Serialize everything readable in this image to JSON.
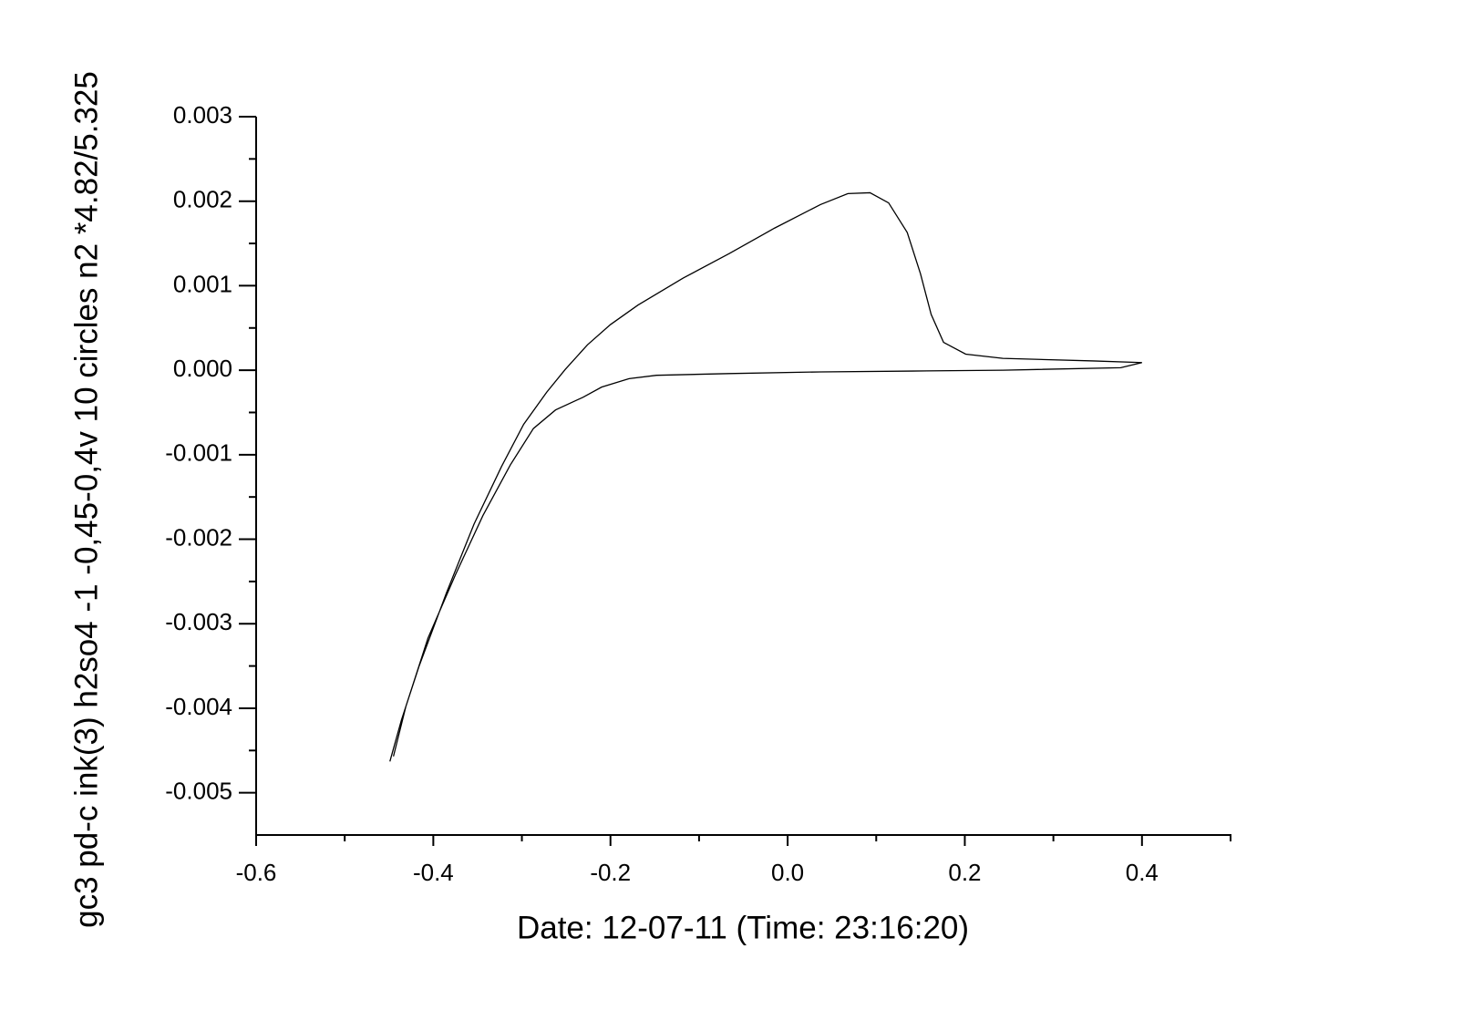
{
  "chart_data": {
    "type": "line",
    "xlabel": "Date: 12-07-11 (Time: 23:16:20)",
    "ylabel": "gc3 pd-c ink(3) h2so4 -1   -0,45-0,4v 10 circles n2 *4.82/5.325",
    "x": [
      -0.449,
      -0.436,
      -0.416,
      -0.385,
      -0.354,
      -0.323,
      -0.298,
      -0.272,
      -0.251,
      -0.226,
      -0.2,
      -0.169,
      -0.118,
      -0.066,
      -0.015,
      0.037,
      0.068,
      0.093,
      0.114,
      0.135,
      0.15,
      0.162,
      0.176,
      0.201,
      0.243,
      0.345,
      0.4,
      0.376,
      0.243,
      0.14,
      0.037,
      -0.066,
      -0.148,
      -0.179,
      -0.21,
      -0.231,
      -0.262,
      -0.287,
      -0.313,
      -0.344,
      -0.375,
      -0.406,
      -0.431,
      -0.445
    ],
    "series": [
      {
        "color": "#000000",
        "values": [
          -0.00463,
          -0.00414,
          -0.0035,
          -0.00263,
          -0.00182,
          -0.00114,
          -0.00064,
          -0.00026,
          1e-05,
          0.0003,
          0.00054,
          0.00077,
          0.00109,
          0.00138,
          0.00168,
          0.00196,
          0.00209,
          0.0021,
          0.00198,
          0.00163,
          0.00114,
          0.00066,
          0.00033,
          0.00019,
          0.00014,
          0.00011,
          9e-05,
          3e-05,
          0.0,
          -1e-05,
          -2e-05,
          -4e-05,
          -6e-05,
          -0.0001,
          -0.0002,
          -0.00032,
          -0.00047,
          -0.00069,
          -0.00112,
          -0.00172,
          -0.00242,
          -0.00317,
          -0.00398,
          -0.00457
        ]
      }
    ],
    "xlim": [
      -0.6,
      0.5
    ],
    "ylim": [
      -0.0055,
      0.003
    ],
    "xticks": [
      -0.6,
      -0.4,
      -0.2,
      {
        "value": 0,
        "label": "0.0"
      },
      0.2,
      0.4
    ],
    "xminorticks": [
      -0.5,
      -0.3,
      -0.1,
      0.1,
      0.3,
      0.5
    ],
    "yticks": [
      0.003,
      0.002,
      0.001,
      {
        "value": 0,
        "label": "0.000"
      },
      -0.001,
      -0.002,
      -0.003,
      -0.004,
      -0.005
    ],
    "yminorticks": [
      0.0025,
      0.0015,
      0.0005,
      -0.0005,
      -0.0015,
      -0.0025,
      -0.0035,
      -0.0045
    ],
    "grid": false
  }
}
